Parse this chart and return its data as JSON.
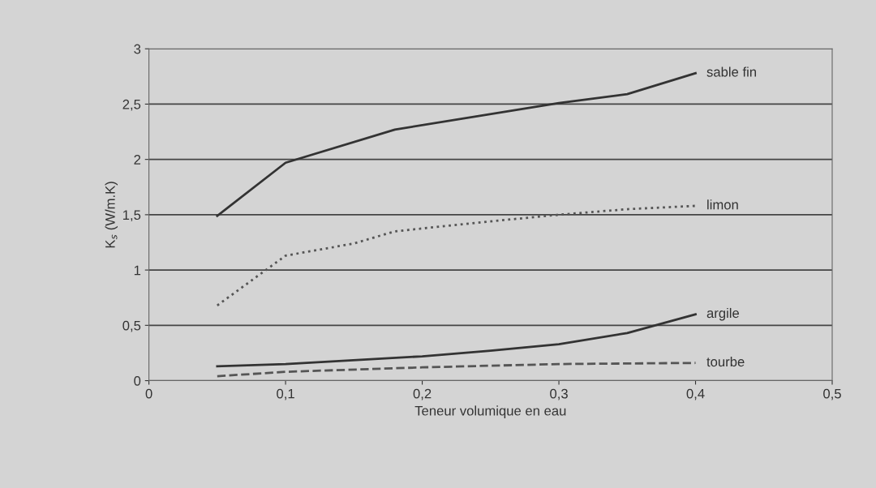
{
  "chart_data": {
    "type": "line",
    "xlabel": "Teneur volumique en eau",
    "ylabel": "K$_{s}$ (W/m.K)",
    "xlim": [
      0,
      0.5
    ],
    "ylim": [
      0,
      3
    ],
    "xticks": [
      0,
      {
        "value": 0.1,
        "label": "0,1"
      },
      {
        "value": 0.2,
        "label": "0,2"
      },
      {
        "value": 0.3,
        "label": "0,3"
      },
      {
        "value": 0.4,
        "label": "0,4"
      },
      {
        "value": 0.5,
        "label": "0,5"
      }
    ],
    "yticks": [
      0,
      {
        "value": 0.5,
        "label": "0,5"
      },
      1,
      {
        "value": 1.5,
        "label": "1,5"
      },
      2,
      {
        "value": 2.5,
        "label": "2,5"
      },
      3
    ],
    "grid": "y",
    "legend": false,
    "marker": "none",
    "series": [
      {
        "name": "sable fin",
        "color": "#333333",
        "line_style": "solid",
        "x": [
          0.05,
          0.1,
          0.18,
          0.3,
          0.35,
          0.4
        ],
        "values": [
          1.49,
          1.97,
          2.27,
          2.51,
          2.59,
          2.78
        ]
      },
      {
        "name": "limon",
        "color": "#555555",
        "line_style": "dotted",
        "x": [
          0.05,
          0.1,
          0.15,
          0.18,
          0.25,
          0.3,
          0.35,
          0.4
        ],
        "values": [
          0.68,
          1.13,
          1.24,
          1.35,
          1.44,
          1.5,
          1.55,
          1.58
        ]
      },
      {
        "name": "argile",
        "color": "#333333",
        "line_style": "solid",
        "x": [
          0.05,
          0.1,
          0.2,
          0.25,
          0.3,
          0.35,
          0.4
        ],
        "values": [
          0.13,
          0.15,
          0.22,
          0.27,
          0.33,
          0.43,
          0.6
        ]
      },
      {
        "name": "tourbe",
        "color": "#555555",
        "line_style": "dashed",
        "x": [
          0.05,
          0.1,
          0.2,
          0.3,
          0.4
        ],
        "values": [
          0.04,
          0.08,
          0.12,
          0.15,
          0.16
        ]
      }
    ]
  }
}
